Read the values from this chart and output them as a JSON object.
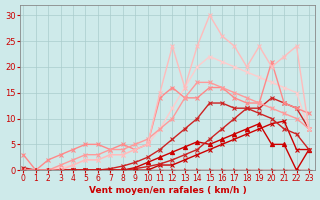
{
  "xlabel": "Vent moyen/en rafales ( km/h )",
  "background_color": "#ceeaea",
  "grid_color": "#aacccc",
  "text_color": "#cc0000",
  "ylim": [
    0,
    32
  ],
  "xlim": [
    -0.3,
    23.5
  ],
  "yticks": [
    0,
    5,
    10,
    15,
    20,
    25,
    30
  ],
  "xticks": [
    0,
    1,
    2,
    3,
    4,
    5,
    6,
    7,
    8,
    9,
    10,
    11,
    12,
    13,
    14,
    15,
    16,
    17,
    18,
    19,
    20,
    21,
    22,
    23
  ],
  "series": [
    {
      "x": [
        0,
        1,
        2,
        3,
        4,
        5,
        6,
        7,
        8,
        9,
        10,
        11,
        12,
        13,
        14,
        15,
        16,
        17,
        18,
        19,
        20,
        21,
        22,
        23
      ],
      "y": [
        0,
        0,
        0,
        0,
        0,
        0,
        0,
        0,
        0,
        0,
        0,
        1,
        1,
        2,
        3,
        4,
        5,
        6,
        7,
        8,
        9,
        9.5,
        4,
        4
      ],
      "color": "#cc0000",
      "lw": 1.0,
      "marker": "x",
      "ms": 3
    },
    {
      "x": [
        0,
        1,
        2,
        3,
        4,
        5,
        6,
        7,
        8,
        9,
        10,
        11,
        12,
        13,
        14,
        15,
        16,
        17,
        18,
        19,
        20,
        21,
        22,
        23
      ],
      "y": [
        0,
        0,
        0,
        0,
        0,
        0,
        0,
        0,
        0,
        0.5,
        1.5,
        2.5,
        3.5,
        4.5,
        5.5,
        5,
        6,
        7,
        8,
        9,
        5,
        5,
        0,
        4
      ],
      "color": "#cc0000",
      "lw": 1.0,
      "marker": "^",
      "ms": 3
    },
    {
      "x": [
        0,
        1,
        2,
        3,
        4,
        5,
        6,
        7,
        8,
        9,
        10,
        11,
        12,
        13,
        14,
        15,
        16,
        17,
        18,
        19,
        20,
        21,
        22,
        23
      ],
      "y": [
        0.5,
        0,
        0,
        0,
        0,
        0,
        0,
        0,
        0,
        0.3,
        0.7,
        1.2,
        2,
        3,
        4,
        6,
        8,
        10,
        12,
        12,
        14,
        13,
        12,
        8
      ],
      "color": "#cc2222",
      "lw": 1.0,
      "marker": "x",
      "ms": 3
    },
    {
      "x": [
        0,
        1,
        2,
        3,
        4,
        5,
        6,
        7,
        8,
        9,
        10,
        11,
        12,
        13,
        14,
        15,
        16,
        17,
        18,
        19,
        20,
        21,
        22,
        23
      ],
      "y": [
        0,
        0,
        0,
        0,
        0,
        0,
        0,
        0.3,
        0.8,
        1.5,
        2.5,
        4,
        6,
        8,
        10,
        13,
        13,
        12,
        12,
        11,
        10,
        8,
        7,
        4
      ],
      "color": "#cc2222",
      "lw": 1.0,
      "marker": "x",
      "ms": 3
    },
    {
      "x": [
        0,
        1,
        2,
        3,
        4,
        5,
        6,
        7,
        8,
        9,
        10,
        11,
        12,
        13,
        14,
        15,
        16,
        17,
        18,
        19,
        20,
        21,
        22,
        23
      ],
      "y": [
        0,
        0,
        0,
        0.5,
        1,
        2,
        2,
        3,
        3,
        4,
        5,
        8,
        12,
        16,
        20,
        22,
        21,
        20,
        19,
        18,
        17,
        16,
        15,
        8
      ],
      "color": "#ffcccc",
      "lw": 1.0,
      "marker": "x",
      "ms": 3
    },
    {
      "x": [
        0,
        1,
        2,
        3,
        4,
        5,
        6,
        7,
        8,
        9,
        10,
        11,
        12,
        13,
        14,
        15,
        16,
        17,
        18,
        19,
        20,
        21,
        22,
        23
      ],
      "y": [
        3,
        0,
        2,
        3,
        4,
        5,
        5,
        4,
        5,
        4,
        5,
        14,
        16,
        14,
        14,
        16,
        16,
        14,
        13,
        13,
        21,
        13,
        12,
        11
      ],
      "color": "#ff8888",
      "lw": 1.0,
      "marker": "x",
      "ms": 3
    },
    {
      "x": [
        0,
        1,
        2,
        3,
        4,
        5,
        6,
        7,
        8,
        9,
        10,
        11,
        12,
        13,
        14,
        15,
        16,
        17,
        18,
        19,
        20,
        21,
        22,
        23
      ],
      "y": [
        0,
        0,
        0,
        1,
        2,
        3,
        3,
        4,
        4,
        5,
        6,
        8,
        10,
        14,
        17,
        17,
        16,
        15,
        14,
        13,
        12,
        11,
        10,
        8
      ],
      "color": "#ff9999",
      "lw": 1.0,
      "marker": "x",
      "ms": 3
    },
    {
      "x": [
        0,
        1,
        2,
        3,
        4,
        5,
        6,
        7,
        8,
        9,
        10,
        11,
        12,
        13,
        14,
        15,
        16,
        17,
        18,
        19,
        20,
        21,
        22,
        23
      ],
      "y": [
        0,
        0,
        0,
        0,
        1,
        2,
        2,
        3,
        3,
        4,
        5,
        15,
        24,
        16,
        24,
        30,
        26,
        24,
        20,
        24,
        20,
        22,
        24,
        8
      ],
      "color": "#ffbbbb",
      "lw": 1.0,
      "marker": "x",
      "ms": 3
    },
    {
      "x": [
        0,
        1,
        2,
        3,
        4,
        5,
        6,
        7,
        8,
        9,
        10,
        11,
        12,
        13,
        14,
        15,
        16,
        17,
        18,
        19,
        20,
        21,
        22,
        23
      ],
      "y": [
        0,
        0,
        0,
        0,
        0,
        0,
        0,
        0,
        0,
        0,
        0,
        0,
        0,
        0,
        0,
        0,
        0,
        0,
        0,
        0,
        0,
        0,
        0,
        0
      ],
      "color": "#cc0000",
      "lw": 1.0,
      "marker": "4",
      "ms": 4
    }
  ]
}
